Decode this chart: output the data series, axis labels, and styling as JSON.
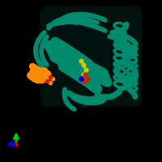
{
  "background_color": "#000000",
  "protein_color": "#008B6E",
  "ligand_color": "#FF8C00",
  "atom_colors": {
    "red": "#CC2200",
    "yellow": "#CCCC00",
    "blue": "#0000CC",
    "orange": "#FF6600"
  },
  "axis_colors": {
    "x": "#0000FF",
    "y": "#00CC00",
    "origin": "#CC0000"
  },
  "figsize": [
    2.0,
    2.0
  ],
  "dpi": 100
}
